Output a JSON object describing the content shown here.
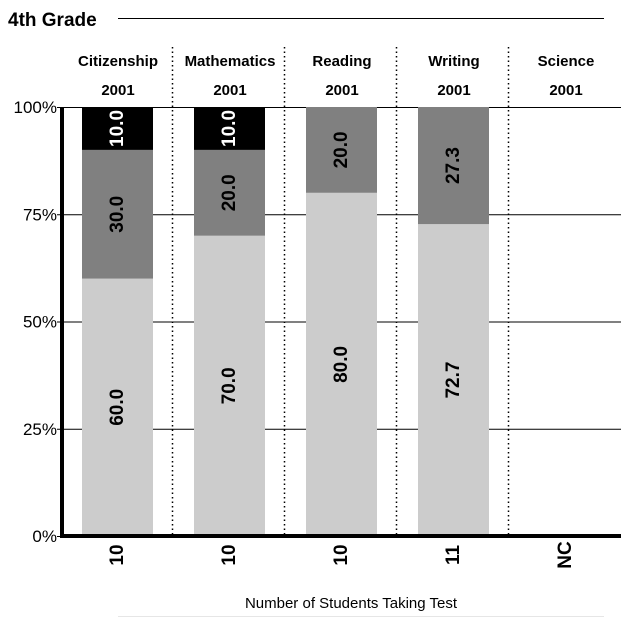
{
  "chart_data": {
    "type": "bar",
    "stacked": true,
    "title": "4th Grade",
    "ylim": [
      0,
      100
    ],
    "yticks": [
      "0%",
      "25%",
      "50%",
      "75%",
      "100%"
    ],
    "ytick_values": [
      0,
      25,
      50,
      75,
      100
    ],
    "grid": true,
    "categories": [
      "Citizenship",
      "Mathematics",
      "Reading",
      "Writing",
      "Science"
    ],
    "category_years": [
      "2001",
      "2001",
      "2001",
      "2001",
      "2001"
    ],
    "students": [
      "10",
      "10",
      "10",
      "11",
      "NC"
    ],
    "xlabel": "Number of Students Taking Test",
    "series": [
      {
        "values": [
          60.0,
          70.0,
          80.0,
          72.7,
          null
        ],
        "labels": [
          "60.0",
          "70.0",
          "80.0",
          "72.7",
          ""
        ]
      },
      {
        "values": [
          30.0,
          20.0,
          20.0,
          27.3,
          null
        ],
        "labels": [
          "30.0",
          "20.0",
          "20.0",
          "27.3",
          ""
        ]
      },
      {
        "values": [
          10.0,
          10.0,
          0,
          0,
          null
        ],
        "labels": [
          "10.0",
          "10.0",
          "",
          "",
          ""
        ]
      }
    ],
    "colors": [
      "#cccccc",
      "#808080",
      "#000000"
    ],
    "label_colors": [
      "#000000",
      "#000000",
      "#ffffff"
    ]
  }
}
